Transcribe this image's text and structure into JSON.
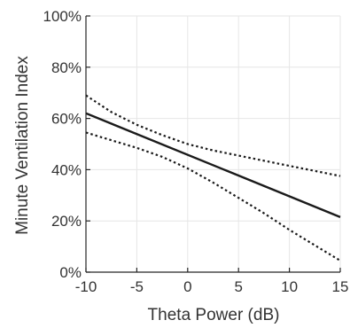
{
  "chart_data": {
    "type": "line",
    "xlabel": "Theta Power (dB)",
    "ylabel": "Minute Ventilation Index",
    "xlim": [
      -10,
      15
    ],
    "ylim": [
      0,
      100
    ],
    "xticks": [
      -10,
      -5,
      0,
      5,
      10,
      15
    ],
    "yticks": [
      0,
      20,
      40,
      60,
      80,
      100
    ],
    "xtick_labels": [
      "-10",
      "-5",
      "0",
      "5",
      "10",
      "15"
    ],
    "ytick_labels": [
      "0%",
      "20%",
      "40%",
      "60%",
      "80%",
      "100%"
    ],
    "grid": true,
    "legend": "none",
    "series": [
      {
        "style": "solid",
        "x": [
          -10,
          15
        ],
        "y": [
          62,
          21.5
        ]
      },
      {
        "style": "dotted",
        "x": [
          -10,
          -7.5,
          -5,
          -2.5,
          0,
          2.5,
          5,
          7.5,
          10,
          12.5,
          15
        ],
        "y": [
          69,
          62.5,
          57.5,
          53.5,
          50,
          47.5,
          45.5,
          43.5,
          41.5,
          39.5,
          37.5
        ]
      },
      {
        "style": "dotted",
        "x": [
          -10,
          -7.5,
          -5,
          -2.5,
          0,
          2.5,
          5,
          7.5,
          10,
          12.5,
          15
        ],
        "y": [
          54.5,
          51.5,
          48.5,
          45,
          40.5,
          35,
          29,
          23,
          16.5,
          10.5,
          4.5
        ]
      }
    ],
    "colors": {
      "line": "#1a1a1a",
      "grid": "#e6e6e6",
      "text": "#333333"
    }
  }
}
